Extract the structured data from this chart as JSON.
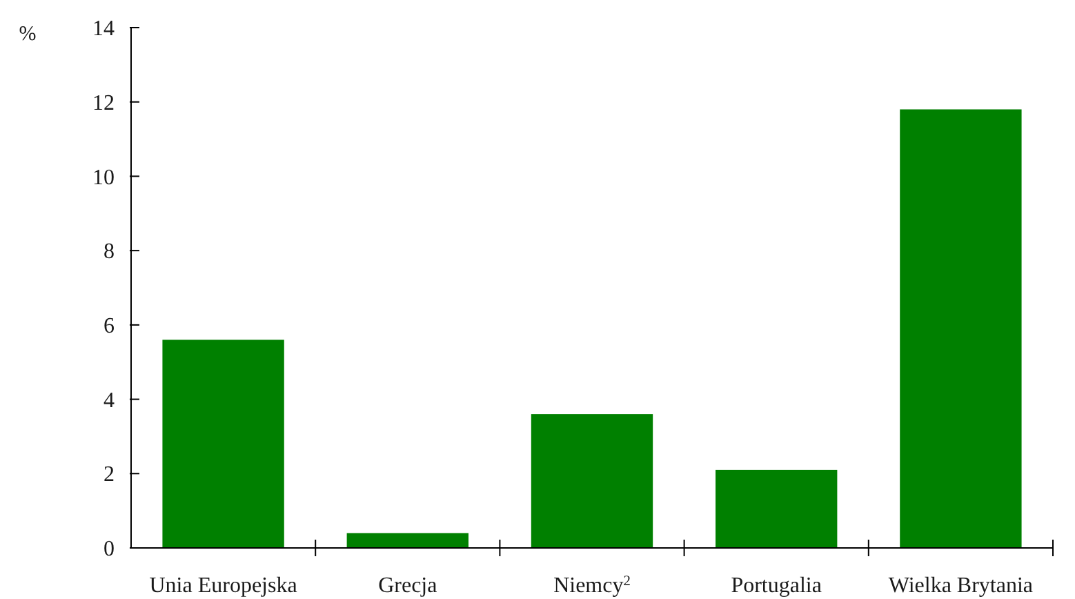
{
  "chart_data": {
    "type": "bar",
    "ylabel": "%",
    "categories": [
      "Unia Europejska",
      "Grecja",
      "Niemcy$^{2}$",
      "Portugalia",
      "Wielka Brytania"
    ],
    "values": [
      5.6,
      0.4,
      3.6,
      2.1,
      11.8
    ],
    "color": "#008000",
    "ylim": [
      0,
      14
    ],
    "yticks": [
      0,
      2,
      4,
      6,
      8,
      10,
      12,
      14
    ],
    "grid": false
  }
}
